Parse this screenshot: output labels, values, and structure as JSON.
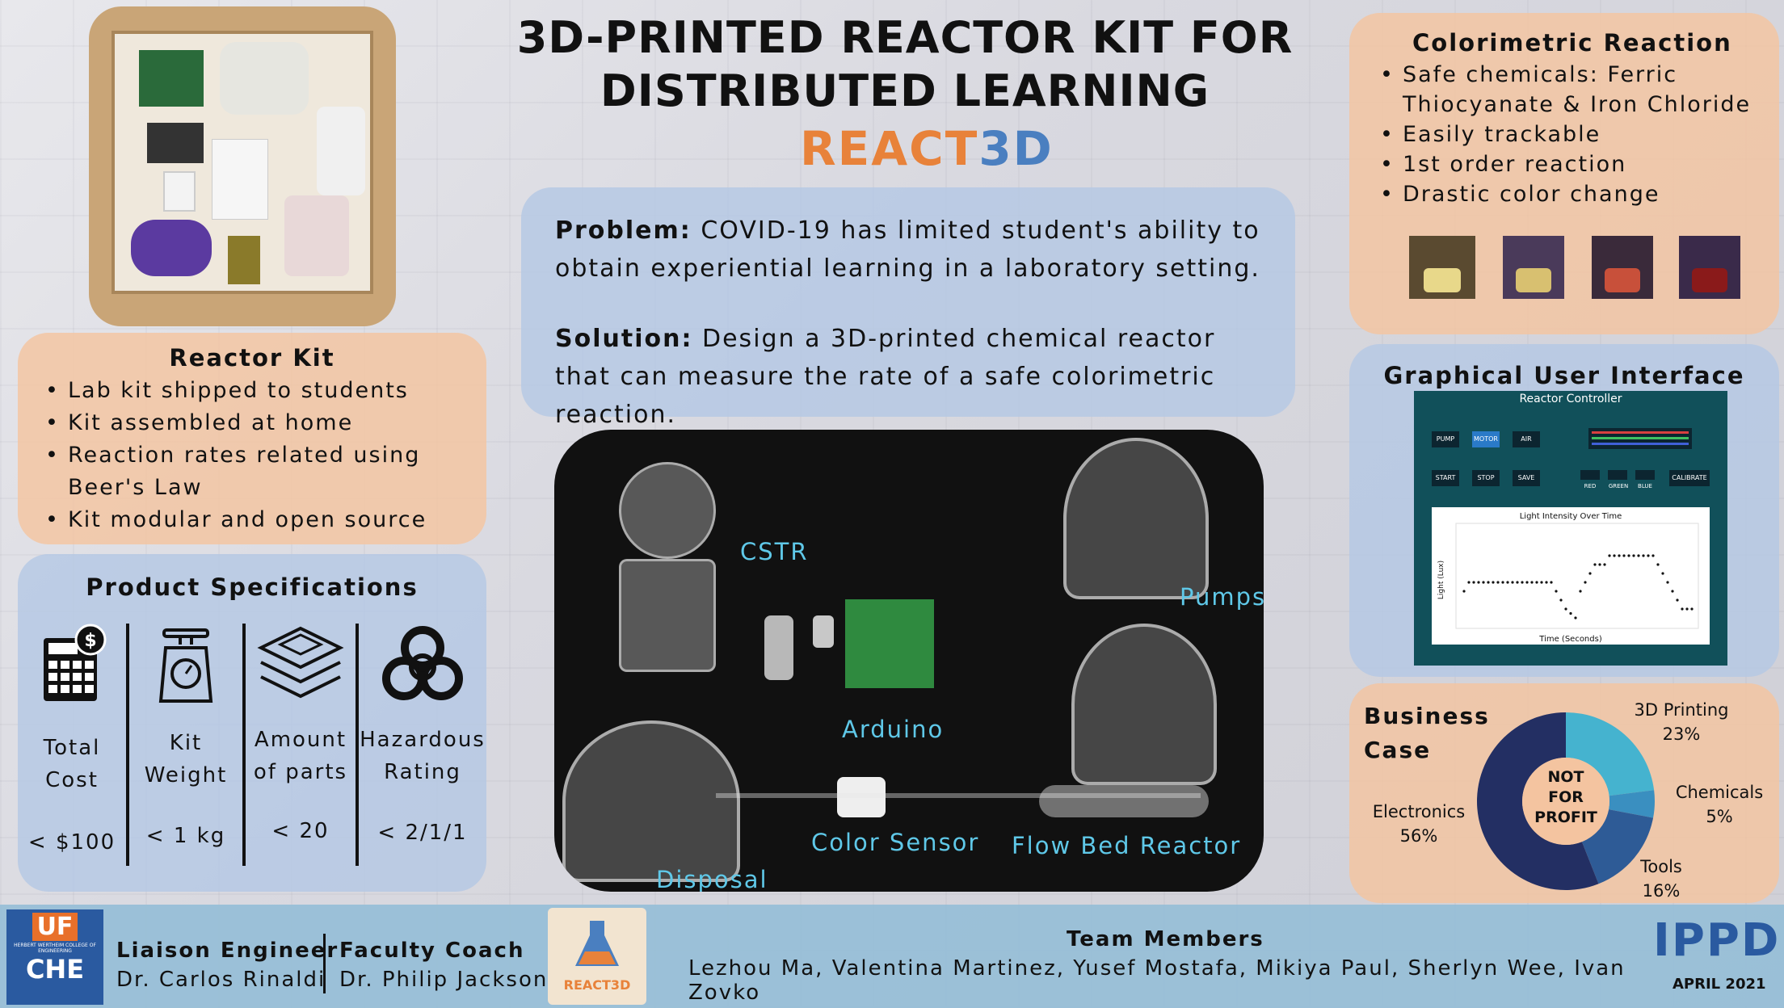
{
  "title": {
    "line1": "3D-PRINTED REACTOR KIT FOR",
    "line2": "DISTRIBUTED LEARNING",
    "logo_react": "REACT",
    "logo_3d": "3D"
  },
  "problem": {
    "problem_label": "Problem:",
    "problem_text": "COVID-19 has limited student's ability to obtain experiential learning in a laboratory setting.",
    "solution_label": "Solution:",
    "solution_text": "Design a 3D-printed chemical reactor that can measure the rate of a safe colorimetric reaction."
  },
  "reactor_kit": {
    "title": "Reactor Kit",
    "items": [
      "Lab kit shipped to students",
      "Kit assembled at home",
      "Reaction rates related using Beer's Law",
      "Kit modular and open source"
    ]
  },
  "specs": {
    "title": "Product Specifications",
    "columns": [
      {
        "label_l1": "Total",
        "label_l2": "Cost",
        "value": "< $100",
        "icon": "calculator-dollar-icon"
      },
      {
        "label_l1": "Kit",
        "label_l2": "Weight",
        "value": "< 1 kg",
        "icon": "scale-icon"
      },
      {
        "label_l1": "Amount",
        "label_l2": "of parts",
        "value": "< 20",
        "icon": "layers-icon"
      },
      {
        "label_l1": "Hazardous",
        "label_l2": "Rating",
        "value": "< 2/1/1",
        "icon": "biohazard-icon"
      }
    ]
  },
  "reactor_labels": {
    "cstr": "CSTR",
    "pumps": "Pumps",
    "arduino": "Arduino",
    "color_sensor": "Color Sensor",
    "flow_bed": "Flow Bed Reactor",
    "disposal": "Disposal"
  },
  "colorimetric": {
    "title": "Colorimetric Reaction",
    "items": [
      "Safe chemicals: Ferric Thiocyanate & Iron Chloride",
      "Easily trackable",
      "1st order reaction",
      "Drastic color change"
    ]
  },
  "gui": {
    "title": "Graphical User Interface (GUI)",
    "window_title": "Reactor Controller",
    "buttons_row1": [
      "PUMP",
      "MOTOR",
      "AIR"
    ],
    "buttons_row2": [
      "START",
      "STOP",
      "SAVE"
    ],
    "color_labels": [
      "RED",
      "GREEN",
      "BLUE"
    ],
    "calibrate": "CALIBRATE",
    "plot_title": "Light Intensity Over Time",
    "plot_xlabel": "Time (Seconds)",
    "plot_ylabel": "Light (Lux)"
  },
  "business": {
    "title_l1": "Business",
    "title_l2": "Case",
    "center_l1": "NOT",
    "center_l2": "FOR",
    "center_l3": "PROFIT"
  },
  "chart_data": {
    "type": "pie",
    "title": "",
    "categories": [
      "3D Printing",
      "Chemicals",
      "Tools",
      "Electronics"
    ],
    "values": [
      23,
      5,
      16,
      56
    ],
    "labels": [
      "23%",
      "5%",
      "16%",
      "56%"
    ],
    "colors": [
      "#45b3cf",
      "#3a8fc0",
      "#2e5b96",
      "#232f63"
    ]
  },
  "footer": {
    "uf": "UF",
    "uf_sub": "HERBERT WERTHEIM COLLEGE OF ENGINEERING",
    "che": "CHE",
    "liaison_title": "Liaison Engineer",
    "liaison_name": "Dr. Carlos Rinaldi",
    "coach_title": "Faculty Coach",
    "coach_name": "Dr. Philip Jackson",
    "logo_text": "REACT3D",
    "team_title": "Team Members",
    "team_names": "Lezhou Ma, Valentina Martinez, Yusef Mostafa, Mikiya Paul, Sherlyn Wee, Ivan Zovko",
    "ippd": "IPPD",
    "date": "APRIL 2021"
  },
  "colors": {
    "peach": "#f4c4a0",
    "blue_panel": "#b4c8e4",
    "accent_label": "#5fc8e8",
    "footer": "#96bed7"
  }
}
